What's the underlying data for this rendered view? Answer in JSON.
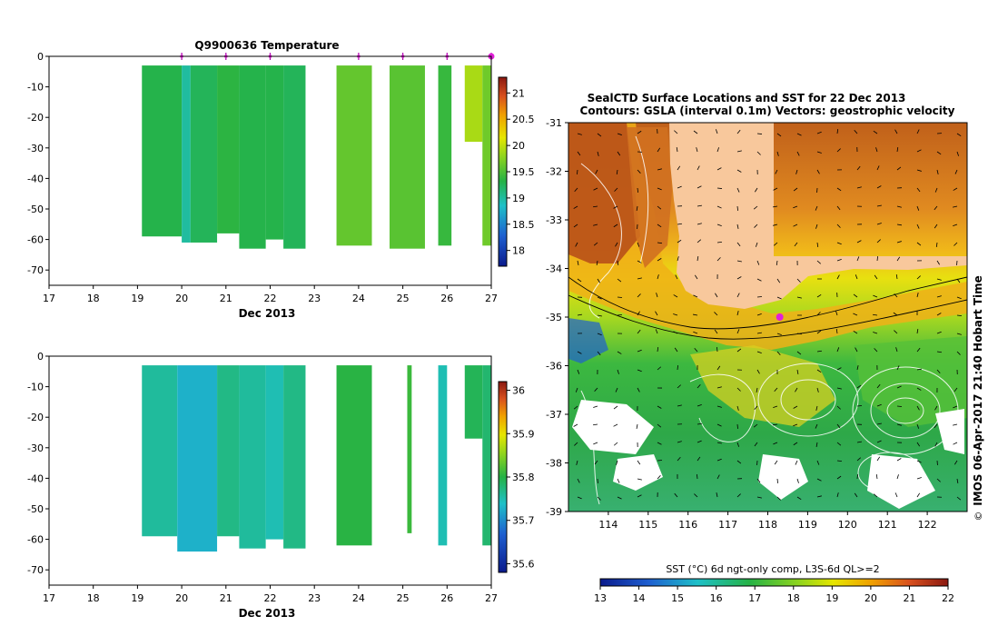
{
  "chart_data": [
    {
      "type": "heatmap",
      "title": "Q9900636  Temperature",
      "xlabel": "Dec 2013",
      "ylabel": "",
      "xlim": [
        17,
        27
      ],
      "ylim": [
        -75,
        0
      ],
      "x_ticks": [
        "17",
        "18",
        "19",
        "20",
        "21",
        "22",
        "23",
        "24",
        "25",
        "26",
        "27"
      ],
      "y_ticks": [
        "0",
        "-10",
        "-20",
        "-30",
        "-40",
        "-50",
        "-60",
        "-70"
      ],
      "profile_markers": [
        20,
        21,
        22,
        24,
        25,
        26,
        27
      ],
      "colorbar": {
        "ticks": [
          "18",
          "18.5",
          "19",
          "19.5",
          "20",
          "20.5",
          "21"
        ],
        "min": 17.7,
        "max": 21.3
      },
      "profiles": [
        {
          "x0": 19.1,
          "x1": 20.0,
          "depth": -59,
          "value": 19.3
        },
        {
          "x0": 20.0,
          "x1": 20.2,
          "depth": -61,
          "value": 19.0
        },
        {
          "x0": 20.2,
          "x1": 20.8,
          "depth": -61,
          "value": 19.25
        },
        {
          "x0": 20.8,
          "x1": 21.3,
          "depth": -58,
          "value": 19.35
        },
        {
          "x0": 21.3,
          "x1": 21.9,
          "depth": -63,
          "value": 19.3
        },
        {
          "x0": 21.9,
          "x1": 22.3,
          "depth": -60,
          "value": 19.3
        },
        {
          "x0": 22.3,
          "x1": 22.8,
          "depth": -63,
          "value": 19.25
        },
        {
          "x0": 23.5,
          "x1": 24.3,
          "depth": -62,
          "value": 19.6
        },
        {
          "x0": 24.7,
          "x1": 25.5,
          "depth": -63,
          "value": 19.55
        },
        {
          "x0": 25.8,
          "x1": 26.1,
          "depth": -62,
          "value": 19.4
        },
        {
          "x0": 26.4,
          "x1": 26.8,
          "depth": -28,
          "value": 19.9
        },
        {
          "x0": 26.8,
          "x1": 27.0,
          "depth": -62,
          "value": 19.65
        }
      ]
    },
    {
      "type": "heatmap",
      "title": "",
      "xlabel": "Dec 2013",
      "ylabel": "",
      "xlim": [
        17,
        27
      ],
      "ylim": [
        -75,
        0
      ],
      "x_ticks": [
        "17",
        "18",
        "19",
        "20",
        "21",
        "22",
        "23",
        "24",
        "25",
        "26",
        "27"
      ],
      "y_ticks": [
        "0",
        "-10",
        "-20",
        "-30",
        "-40",
        "-50",
        "-60",
        "-70"
      ],
      "colorbar": {
        "ticks": [
          "35.6",
          "35.7",
          "35.8",
          "35.9",
          "36"
        ],
        "min": 35.58,
        "max": 36.02
      },
      "profiles": [
        {
          "x0": 19.1,
          "x1": 19.9,
          "depth": -59,
          "value": 35.74
        },
        {
          "x0": 19.9,
          "x1": 20.8,
          "depth": -64,
          "value": 35.71
        },
        {
          "x0": 20.8,
          "x1": 21.3,
          "depth": -59,
          "value": 35.75
        },
        {
          "x0": 21.3,
          "x1": 21.9,
          "depth": -63,
          "value": 35.74
        },
        {
          "x0": 21.9,
          "x1": 22.3,
          "depth": -60,
          "value": 35.73
        },
        {
          "x0": 22.3,
          "x1": 22.8,
          "depth": -63,
          "value": 35.75
        },
        {
          "x0": 23.5,
          "x1": 24.3,
          "depth": -62,
          "value": 35.78
        },
        {
          "x0": 25.1,
          "x1": 25.2,
          "depth": -58,
          "value": 35.79
        },
        {
          "x0": 25.8,
          "x1": 26.0,
          "depth": -62,
          "value": 35.73
        },
        {
          "x0": 26.4,
          "x1": 26.8,
          "depth": -27,
          "value": 35.77
        },
        {
          "x0": 26.8,
          "x1": 27.0,
          "depth": -62,
          "value": 35.76
        }
      ]
    },
    {
      "type": "heatmap",
      "title": "SealCTD Surface Locations and SST for 22 Dec 2013",
      "subtitle": "Contours: GSLA (interval 0.1m) Vectors: geostrophic velocity",
      "xlabel": "",
      "ylabel": "",
      "xlim": [
        113,
        123
      ],
      "ylim": [
        -39,
        -31
      ],
      "x_ticks": [
        "114",
        "115",
        "116",
        "117",
        "118",
        "119",
        "120",
        "121",
        "122"
      ],
      "y_ticks": [
        "-31",
        "-32",
        "-33",
        "-34",
        "-35",
        "-36",
        "-37",
        "-38",
        "-39"
      ],
      "colorbar": {
        "label": "SST (°C) 6d ngt-only comp, L3S-6d QL>=2",
        "ticks": [
          "13",
          "14",
          "15",
          "16",
          "17",
          "18",
          "19",
          "20",
          "21",
          "22"
        ],
        "min": 13,
        "max": 22
      },
      "seal_location": {
        "lon": 118.3,
        "lat": -35.0
      },
      "side_label": "IMOS 06-Apr-2017 21:40 Hobart Time"
    }
  ]
}
